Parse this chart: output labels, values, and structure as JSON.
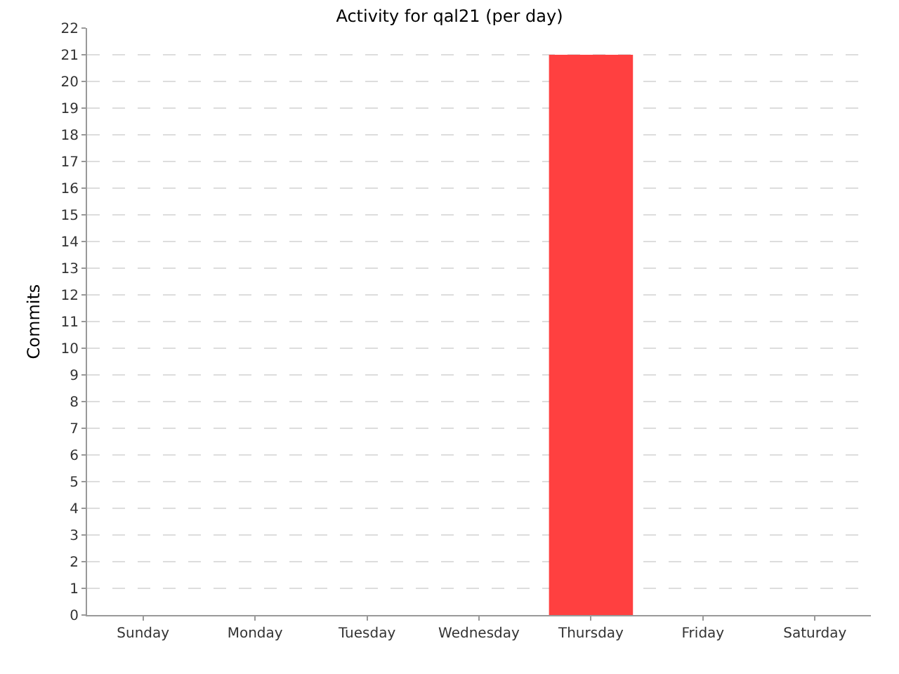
{
  "chart_data": {
    "type": "bar",
    "title": "Activity for qal21 (per day)",
    "ylabel": "Commits",
    "categories": [
      "Sunday",
      "Monday",
      "Tuesday",
      "Wednesday",
      "Thursday",
      "Friday",
      "Saturday"
    ],
    "values": [
      0,
      0,
      0,
      0,
      21,
      0,
      0
    ],
    "color": "#ff4040",
    "ylim": [
      0,
      22
    ],
    "yticks": [
      0,
      1,
      2,
      3,
      4,
      5,
      6,
      7,
      8,
      9,
      10,
      11,
      12,
      13,
      14,
      15,
      16,
      17,
      18,
      19,
      20,
      21,
      22
    ],
    "grid": "y",
    "legend": false
  }
}
